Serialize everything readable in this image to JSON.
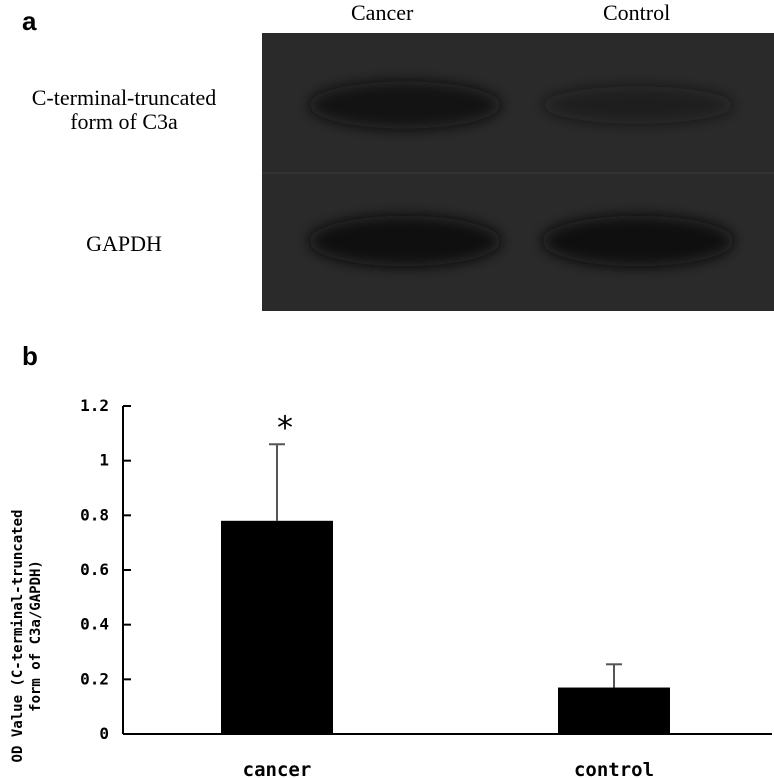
{
  "figure": {
    "panel_a_label": "a",
    "panel_b_label": "b"
  },
  "blot": {
    "lanes": [
      "Cancer",
      "Control"
    ],
    "rows": [
      {
        "label_line1": "C-terminal-truncated",
        "label_line2": "form of C3a",
        "band_intensity": [
          0.85,
          0.55
        ]
      },
      {
        "label_line1": "GAPDH",
        "label_line2": "",
        "band_intensity": [
          0.95,
          0.95
        ]
      }
    ],
    "background_color": "#2a2a2a",
    "band_color": "#0d0d0d"
  },
  "chart_data": {
    "type": "bar",
    "categories": [
      "cancer",
      "control"
    ],
    "values": [
      0.78,
      0.17
    ],
    "errors": [
      0.28,
      0.085
    ],
    "significance": [
      "*",
      ""
    ],
    "title": "",
    "xlabel": "",
    "ylabel_line1": "OD Value (C-terminal-truncated",
    "ylabel_line2": "form of C3a/GAPDH)",
    "ylim": [
      0,
      1.2
    ],
    "yticks": [
      0,
      0.2,
      0.4,
      0.6,
      0.8,
      1,
      1.2
    ],
    "ytick_labels": [
      "0",
      "0.2",
      "0.4",
      "0.6",
      "0.8",
      "1",
      "1.2"
    ],
    "bar_color": "#000000",
    "grid": false
  }
}
